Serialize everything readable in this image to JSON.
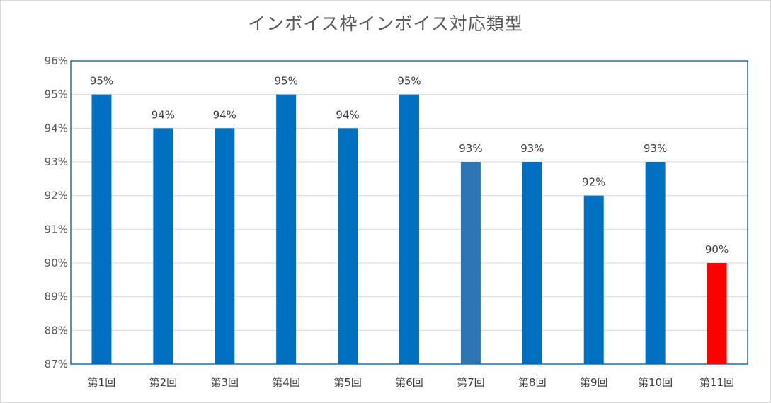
{
  "chart_data": {
    "type": "bar",
    "title": "インボイス枠インボイス対応類型",
    "categories": [
      "第1回",
      "第2回",
      "第3回",
      "第4回",
      "第5回",
      "第6回",
      "第7回",
      "第8回",
      "第9回",
      "第10回",
      "第11回"
    ],
    "values": [
      95,
      94,
      94,
      95,
      94,
      95,
      93,
      93,
      92,
      93,
      90
    ],
    "data_labels": [
      "95%",
      "94%",
      "94%",
      "95%",
      "94%",
      "95%",
      "93%",
      "93%",
      "92%",
      "93%",
      "90%"
    ],
    "bar_colors": [
      "#0070c0",
      "#0070c0",
      "#0070c0",
      "#0070c0",
      "#0070c0",
      "#0070c0",
      "#2e75b6",
      "#0070c0",
      "#0070c0",
      "#0070c0",
      "#ff0000"
    ],
    "ylim": [
      87,
      96
    ],
    "yticks": [
      87,
      88,
      89,
      90,
      91,
      92,
      93,
      94,
      95,
      96
    ],
    "ytick_labels": [
      "87%",
      "88%",
      "89%",
      "90%",
      "91%",
      "92%",
      "93%",
      "94%",
      "95%",
      "96%"
    ],
    "xlabel": "",
    "ylabel": "",
    "grid": true,
    "grid_color": "#d9d9d9",
    "plot_border_color": "#1f6fae"
  }
}
